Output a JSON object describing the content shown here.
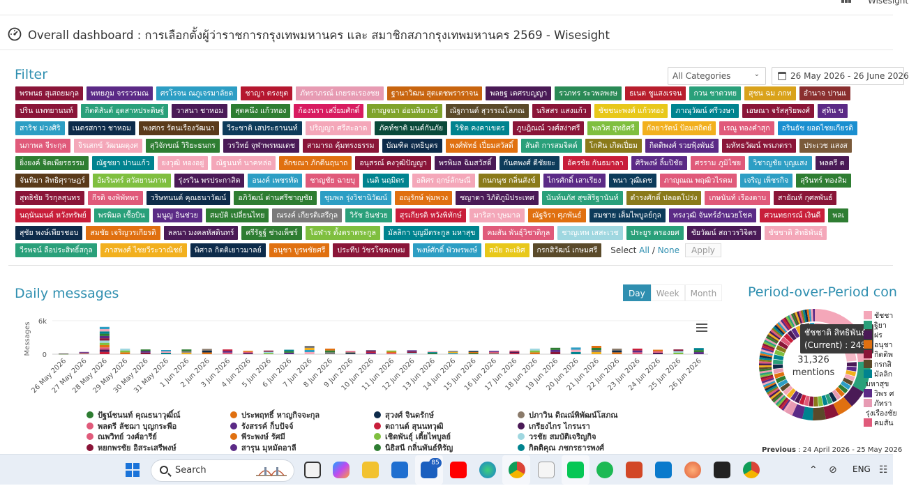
{
  "header": {
    "brand_partial": "Wisesight",
    "page_title": "Overall dashboard : การเลือกตั้งผู้ว่าราชการกรุงเทพมหานคร และ สมาชิกสภากรุงเทพมหานคร 2569 - Wisesight"
  },
  "filter": {
    "heading": "Filter",
    "category_select": "All Categories",
    "date_range": "26 May 2026 - 26 June 2026",
    "select_label": "Select",
    "all_label": "All",
    "separator": "/",
    "none_label": "None",
    "apply_label": "Apply",
    "chip_rows": [
      [
        {
          "label": "พรพนธ สุเสถยมกุล",
          "color": "#8a1538"
        },
        {
          "label": "พทยภูม จรรวรมณ",
          "color": "#5b2a86"
        },
        {
          "label": "ศรโรจน ณภูเจรมาลัยด",
          "color": "#2d9ec4"
        },
        {
          "label": "ชาญา ตรงยุต",
          "color": "#b5172f"
        },
        {
          "label": "ภัทราภรณ์ เกยรตเรองชย",
          "color": "#e79bb3"
        },
        {
          "label": "ฐานาวิฒน สุตเตชพราราจน",
          "color": "#c8650f"
        },
        {
          "label": "พลยฐ เตศรบญญา",
          "color": "#4a1a56"
        },
        {
          "label": "รวภทร ระวพลพงษ",
          "color": "#2a8a56"
        },
        {
          "label": "ธเนต ชูแสงเรจน",
          "color": "#b81e2d"
        },
        {
          "label": "กวน ชาตวทย",
          "color": "#2aa07a"
        },
        {
          "label": "สุชน ฉม ภกท",
          "color": "#d9a21b"
        },
        {
          "label": "อำนาจ ปานแ",
          "color": "#8a2f2f"
        }
      ],
      [
        {
          "label": "ปริน แพทยานนท์",
          "color": "#8a1538"
        },
        {
          "label": "กิตติสันต์ อุดสาหประดิษฐ์",
          "color": "#2aa07a"
        },
        {
          "label": "วาสนา ชาหอม",
          "color": "#4a1a56"
        },
        {
          "label": "สุดคนึง แก้วทอง",
          "color": "#2e7d32"
        },
        {
          "label": "ก้องนรา เสงี่ยมศักดิ์",
          "color": "#d81b60"
        },
        {
          "label": "กาญจนา อ่อนทิมวงษ์",
          "color": "#7fa32b"
        },
        {
          "label": "ณัฐกานต์ สุวรรณโลภณ",
          "color": "#5a4a2a"
        },
        {
          "label": "นริสสร แสงแก้ว",
          "color": "#8a1538"
        },
        {
          "label": "ชัชชนะพงศ์ แก้วทอง",
          "color": "#e8c81a"
        },
        {
          "label": "ภาณุวัฒน์ ศรีวงษา",
          "color": "#00838f"
        },
        {
          "label": "เอษณา จรัสสุริยพงศ์",
          "color": "#8a1538"
        },
        {
          "label": "สุทิน ข",
          "color": "#5b2a86"
        }
      ],
      [
        {
          "label": "สาริช ม่วงศิริ",
          "color": "#2d9ec4"
        },
        {
          "label": "เนตรสกาว ชาหอม",
          "color": "#0d2b4a"
        },
        {
          "label": "พงศกร รัตนเรืองวัฒนา",
          "color": "#5a3a1a"
        },
        {
          "label": "วีระชาติ เสประธานนท์",
          "color": "#0d3b5a"
        },
        {
          "label": "ปริญญา ศรีสะอาด",
          "color": "#f4a7b9"
        },
        {
          "label": "ภัคท์ชาติ มนต์กันภัย",
          "color": "#0a4a3a"
        },
        {
          "label": "วิชิต คงคาเขตร",
          "color": "#00838f"
        },
        {
          "label": "ภูบฎิณณ์ วงศ์สง่าศรี",
          "color": "#8a1538"
        },
        {
          "label": "พลวิศ สุทธิศรี",
          "color": "#7fbf3f"
        },
        {
          "label": "กัลยารัตน์ ป้อมสถิตย์",
          "color": "#f2b01e"
        },
        {
          "label": "เรณู ทองคำสุก",
          "color": "#e05a7a"
        },
        {
          "label": "อรินธัช ยอดไชยเกียรติ",
          "color": "#1a8fd0"
        }
      ],
      [
        {
          "label": "นภาพล จีระกุล",
          "color": "#e05a7a"
        },
        {
          "label": "จิรเสกข์ วัฒนผดุงศ",
          "color": "#f4a7b9"
        },
        {
          "label": "สุวิจักขณ์ วิริยะธนกร",
          "color": "#2e7d32"
        },
        {
          "label": "วรวิทย์ จุฬาพรหมเดช",
          "color": "#4a1a56"
        },
        {
          "label": "สามารถ คุ้มทรงธรรม",
          "color": "#8a1538"
        },
        {
          "label": "บัณฑิต ฤทธิบุตร",
          "color": "#0d2b4a"
        },
        {
          "label": "พงศ์พัทธ์ เปี่ยมสวัสดิ์",
          "color": "#e07010"
        },
        {
          "label": "สันติ การสมจิตต์",
          "color": "#2aa07a"
        },
        {
          "label": "โกศิน เกิดเปี่ยม",
          "color": "#8a7a1a"
        },
        {
          "label": "กิตติพงศ์ รวยฟุ้งพันธ์",
          "color": "#5b2a86"
        },
        {
          "label": "มหัทธวัฒน์ พรเภตรา",
          "color": "#8a1538"
        },
        {
          "label": "ประเวช แสงส",
          "color": "#7a5a3a"
        }
      ],
      [
        {
          "label": "ยิ่งยงค์ จิตเพียรธรรม",
          "color": "#2e7d32"
        },
        {
          "label": "ณัฐชยา ปานแก้ว",
          "color": "#00838f"
        },
        {
          "label": "ยงวุฒิ ทองอยู่",
          "color": "#f4a7b9"
        },
        {
          "label": "ณัฐนนท์ นาคหล่อ",
          "color": "#f4a7b9"
        },
        {
          "label": "ลักขณา ภักดีนฤนาถ",
          "color": "#e07010"
        },
        {
          "label": "อนุสรณ์ คงวุฒิปัญญา",
          "color": "#8a1538"
        },
        {
          "label": "พรพิมล ฉิมสวัสดิ์",
          "color": "#4a1a56"
        },
        {
          "label": "กันตพงศ์ ดีชัยยะ",
          "color": "#0d3b5a"
        },
        {
          "label": "อัครชัย กันธมาลา",
          "color": "#c81e3a"
        },
        {
          "label": "ศิริพงษ์ ลิ้มปิชัย",
          "color": "#5b2a86"
        },
        {
          "label": "ศรราม ภูมิไชย",
          "color": "#e05a7a"
        },
        {
          "label": "วิชาญชัย บุญแสง",
          "color": "#2d9ec4"
        },
        {
          "label": "พลตรี ต",
          "color": "#4a1a56"
        }
      ],
      [
        {
          "label": "จันทิมา สิทธิศุราษฎร์",
          "color": "#5a3a1a"
        },
        {
          "label": "อัมรินทร์ สวัสยานภาพ",
          "color": "#7fbf3f"
        },
        {
          "label": "รุ่งรวิน พรประกาสิต",
          "color": "#4a1a56"
        },
        {
          "label": "อนงค์ เพชรทัด",
          "color": "#2d9ec4"
        },
        {
          "label": "ชาญชัย ฉายบุ",
          "color": "#e05a7a"
        },
        {
          "label": "เนติ นฤมิตร",
          "color": "#00838f"
        },
        {
          "label": "อติศร ฤกษ์ลักษณี",
          "color": "#f4a7b9"
        },
        {
          "label": "กนกนุช กลิ่นสังข์",
          "color": "#8a7a1a"
        },
        {
          "label": "ไกรศักดิ์ เสาเรียง",
          "color": "#5b2a86"
        },
        {
          "label": "พนา วุฒิเดช",
          "color": "#0d3b5a"
        },
        {
          "label": "ภาญุณณ พฤฒิวไรตม",
          "color": "#e05a7a"
        },
        {
          "label": "เจริญ เพ็ชรกิจ",
          "color": "#2d9ec4"
        },
        {
          "label": "สุรินทร์ ทองสิม",
          "color": "#2e7d32"
        }
      ],
      [
        {
          "label": "สุทธิชัย วีรกุลสุนทร",
          "color": "#8a1538"
        },
        {
          "label": "กีรติ จงพิพัทพร",
          "color": "#e05a7a"
        },
        {
          "label": "วริษทนนต์ คุณธนาวัฒน์",
          "color": "#0d2b4a"
        },
        {
          "label": "อภิวัฒน์ ด่านศรีชาญชัย",
          "color": "#2e7d32"
        },
        {
          "label": "ชุมพล รุ่งวิชานิวัฒน์",
          "color": "#2d9ec4"
        },
        {
          "label": "อณุรักษ์ พุ่มพวง",
          "color": "#e07010"
        },
        {
          "label": "ชญาดา วิภัติภูมิประเทศ",
          "color": "#4a1a56"
        },
        {
          "label": "นันท์นภัส สุขสิริฐานันท์",
          "color": "#2aa07a"
        },
        {
          "label": "ดำรงศักดิ์ ปลอดโปร่ง",
          "color": "#8a7a1a"
        },
        {
          "label": "เกษนันท์ เรืองดาบ",
          "color": "#e05a7a"
        },
        {
          "label": "สายัณห์ กุศลพันธ์",
          "color": "#8a1538"
        }
      ],
      [
        {
          "label": "นฤนันมนต์ หวังทรัพย์",
          "color": "#c81e3a"
        },
        {
          "label": "พรพิมล เชื้อบิน",
          "color": "#2aa07a"
        },
        {
          "label": "มนูญ อินช่วย",
          "color": "#5b2a86"
        },
        {
          "label": "สมบัติ เปลี่ยนไทย",
          "color": "#2e7d32"
        },
        {
          "label": "ณรงค์ เกียรติเสรีกุล",
          "color": "#7a7a7a"
        },
        {
          "label": "วิรัช อินช่วย",
          "color": "#2aa07a"
        },
        {
          "label": "สุรเกียรติ หวังพิทักษ์",
          "color": "#c81e3a"
        },
        {
          "label": "มาริสา บุษมาล",
          "color": "#f4a7b9"
        },
        {
          "label": "ณัฐจิรา ศุภพันธ์",
          "color": "#e07010"
        },
        {
          "label": "สมชาย เต็มไพบูลย์กุล",
          "color": "#0d3b5a"
        },
        {
          "label": "ทรงวุฒิ จันทร์อำนวยโชค",
          "color": "#5b2a86"
        },
        {
          "label": "ศวนทธกรณ์ เงินดี",
          "color": "#c81e3a"
        },
        {
          "label": "พลเ",
          "color": "#2e7d32"
        }
      ],
      [
        {
          "label": "สุชัย พงษ์เพียรชอบ",
          "color": "#0d2b4a"
        },
        {
          "label": "สมชัย เจริญวรเกียรติ",
          "color": "#e07010"
        },
        {
          "label": "ลลนา มงคลหัสดินทร์",
          "color": "#4a1a56"
        },
        {
          "label": "ศรีรัฐฐ์ ช่างเพ็ชร์",
          "color": "#2e7d32"
        },
        {
          "label": "โอฬาร ตั้งตราตระกูล",
          "color": "#7fbf3f"
        },
        {
          "label": "มัลลิกา บุญมีตระกูล มหาสุข",
          "color": "#00838f"
        },
        {
          "label": "คมสัน พันธุ์วิชาติกุล",
          "color": "#e05a7a"
        },
        {
          "label": "ชาญเทพ เสสะเวช",
          "color": "#9fd7e0"
        },
        {
          "label": "ประยูร ครองยศ",
          "color": "#2aa07a"
        },
        {
          "label": "ชัยวัฒน์ สถาวรวิจิตร",
          "color": "#4a1a56"
        },
        {
          "label": "ชัชชาติ สิทธิพันธุ์",
          "color": "#f4a7b9"
        }
      ],
      [
        {
          "label": "วีรพจน์ ลือประสิทธิ์สกุล",
          "color": "#2aa07a"
        },
        {
          "label": "ภาสพงศ์ ไชยวีระวาณิชย์",
          "color": "#f2b01e"
        },
        {
          "label": "พิศาล กิตติเยาวมาลย์",
          "color": "#0d2b4a"
        },
        {
          "label": "อนุชา บูรพชัยศรี",
          "color": "#e07010"
        },
        {
          "label": "ประทีป วัชรโชคเกษม",
          "color": "#8a1538"
        },
        {
          "label": "พงษ์ศักดิ์ พัวพรพงษ์",
          "color": "#2d9ec4"
        },
        {
          "label": "สมัย ละเอิศ",
          "color": "#e8c81a"
        },
        {
          "label": "กรกสิวัฒน์ เกษมศรี",
          "color": "#5a4a2a"
        }
      ]
    ]
  },
  "daily": {
    "heading": "Daily messages",
    "toggle": [
      {
        "label": "Day",
        "active": true
      },
      {
        "label": "Week",
        "active": false
      },
      {
        "label": "Month",
        "active": false
      }
    ]
  },
  "chart_data": {
    "type": "bar",
    "stacked": true,
    "ylabel": "Messages",
    "ylim": [
      0,
      6000
    ],
    "y_ticks": [
      "0",
      "6k"
    ],
    "categories": [
      "26 May 2026",
      "27 May 2026",
      "28 May 2026",
      "29 May 2026",
      "30 May 2026",
      "31 May 2026",
      "1 Jun 2026",
      "2 Jun 2026",
      "3 Jun 2026",
      "4 Jun 2026",
      "5 Jun 2026",
      "6 Jun 2026",
      "7 Jun 2026",
      "8 Jun 2026",
      "9 Jun 2026",
      "10 Jun 2026",
      "11 Jun 2026",
      "12 Jun 2026",
      "13 Jun 2026",
      "14 Jun 2026",
      "15 Jun 2026",
      "16 Jun 2026",
      "17 Jun 2026",
      "18 Jun 2026",
      "19 Jun 2026",
      "20 Jun 2026",
      "21 Jun 2026",
      "22 Jun 2026",
      "23 Jun 2026",
      "24 Jun 2026",
      "25 Jun 2026",
      "26 Jun 2026"
    ],
    "values": [
      100,
      400,
      4900,
      1000,
      850,
      750,
      850,
      950,
      850,
      600,
      650,
      800,
      1500,
      1000,
      550,
      700,
      650,
      700,
      550,
      600,
      600,
      600,
      650,
      1000,
      1150,
      1200,
      1500,
      1000,
      1000,
      800,
      850,
      1100
    ],
    "legend": [
      {
        "name": "ปัฐน์ชนนท์ คุณธนาวุฒิ์ณ์",
        "color": "#2e7d32"
      },
      {
        "name": "ประพฤทธิ์ หาญกิจจะกุล",
        "color": "#e07010"
      },
      {
        "name": "สุวงศ์ จินดรักษ์",
        "color": "#0d2b4a"
      },
      {
        "name": "ปภาวิน ดิณณ์พิพัฒน์โสภณ",
        "color": "#8a7a6a"
      },
      {
        "name": "พลตรี ลัชฌา บุญกระพือ",
        "color": "#e05a7a"
      },
      {
        "name": "รังสรรค์ ก็บปัจจ์",
        "color": "#5b2a86"
      },
      {
        "name": "ตถานต์ สุนนทวุฒิ",
        "color": "#c81e3a"
      },
      {
        "name": "เกรียงไกร ไกรนรา",
        "color": "#4a1a56"
      },
      {
        "name": "ณพวิทย์ วงศ์อารีย์",
        "color": "#e05a7a"
      },
      {
        "name": "พีระพงษ์ รัศมี",
        "color": "#e07010"
      },
      {
        "name": "เชิดพันธุ์ เตี้ยไพบูลย์",
        "color": "#7fbf3f"
      },
      {
        "name": "วรชัย สมบัติเจริญกิจ",
        "color": "#9fd7e0"
      },
      {
        "name": "หยกพรชัย อิสระเสรีพงษ์",
        "color": "#8a1538"
      },
      {
        "name": "สารุน มุหมัดอาลี",
        "color": "#5b2a86"
      },
      {
        "name": "นิธิสนี กลิ่นพันธ์หิรัญ",
        "color": "#2e7d32"
      },
      {
        "name": "กิตติคุณ ภชกรธารพงศ์",
        "color": "#00838f"
      }
    ]
  },
  "period": {
    "heading": "Period-over-Period con",
    "tooltip_line1": "ชัชชาติ สิทธิพันธุ์",
    "tooltip_line2": "(Current) : 24%",
    "center_value": "31,326",
    "center_label": "mentions",
    "previous_label": "Previous",
    "previous_range": ": 24 April 2026 - 25 May 2026",
    "legend": [
      {
        "label": "ชัชชา",
        "color": "#f4a7b9"
      },
      {
        "label": "ฐิยา",
        "color": "#2aa07a"
      },
      {
        "label": "ผ่ร",
        "color": "#4a1a56"
      },
      {
        "label": "อนุชา",
        "color": "#e07010"
      },
      {
        "label": "กิตติพ",
        "color": "#8a1538"
      },
      {
        "label": "กรกสิ",
        "color": "#5a4a2a"
      },
      {
        "label": "มัลลิก",
        "color": "#00838f"
      },
      {
        "label": "มหาสุข",
        "color": "#ffffff"
      },
      {
        "label": "วิพร ศ",
        "color": "#5b2a86"
      },
      {
        "label": "ภัทรา",
        "color": "#e79bb3"
      },
      {
        "label": "รุ่งเรืองชัย",
        "color": "#ffffff"
      },
      {
        "label": "คมสัน",
        "color": "#e05a7a"
      }
    ]
  },
  "taskbar": {
    "search_label": "Search",
    "badge": "85",
    "lang": "ENG"
  }
}
